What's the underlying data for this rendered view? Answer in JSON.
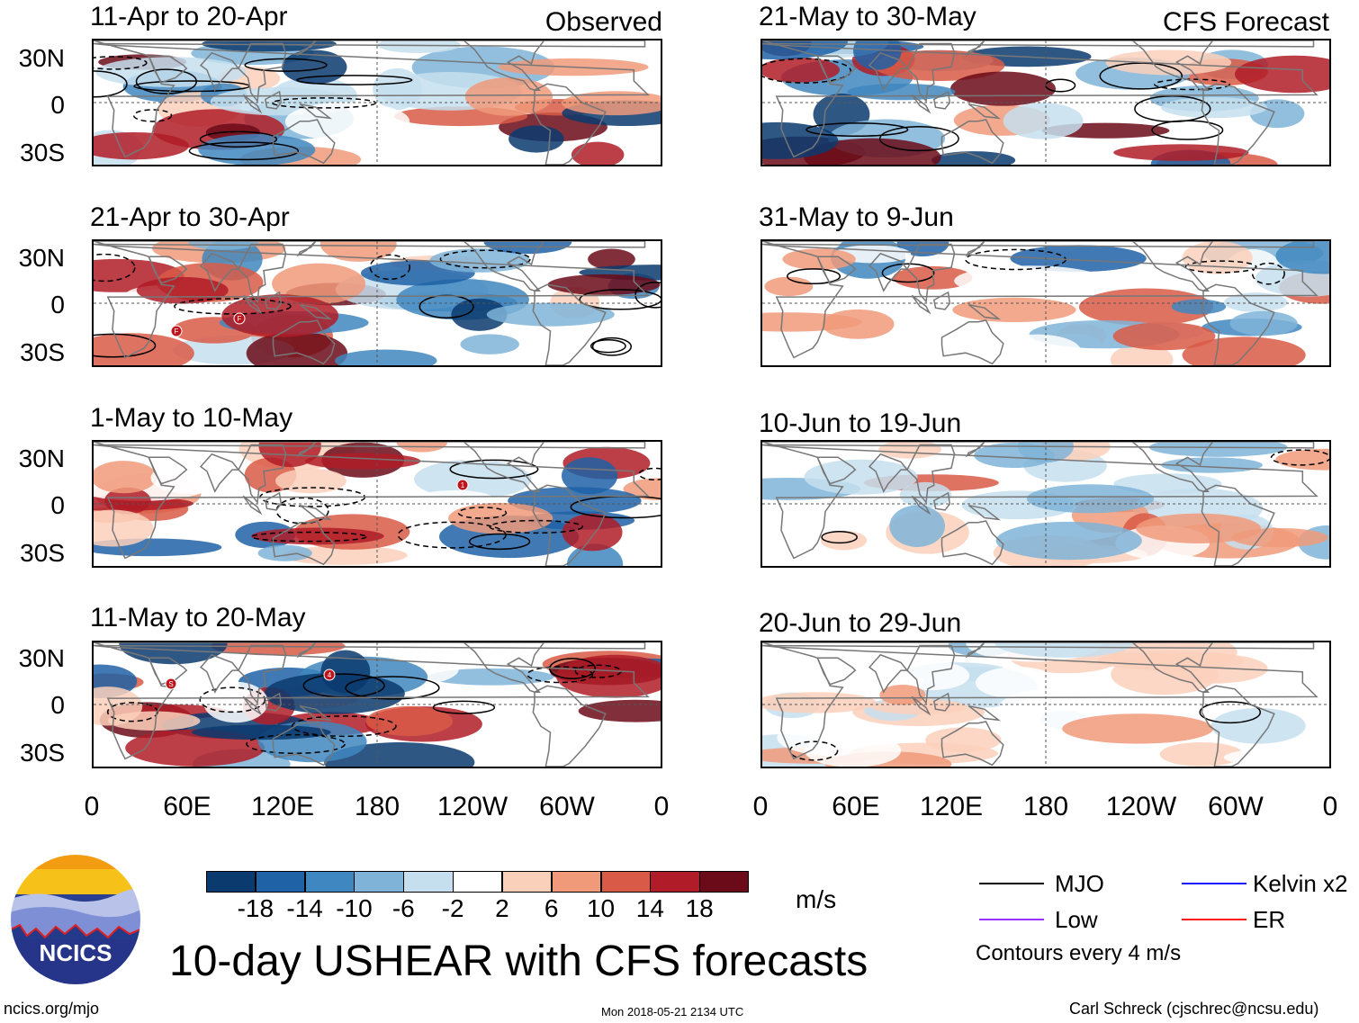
{
  "title": "10-day USHEAR with CFS forecasts",
  "headers": {
    "observed": "Observed",
    "forecast": "CFS Forecast"
  },
  "observed_panels": [
    "11-Apr to 20-Apr",
    "21-Apr to 30-Apr",
    "1-May to 10-May",
    "11-May to 20-May"
  ],
  "forecast_panels": [
    "21-May to 30-May",
    "31-May to 9-Jun",
    "10-Jun to 19-Jun",
    "20-Jun to 29-Jun"
  ],
  "lat_labels": [
    "30N",
    "0",
    "30S"
  ],
  "lon_labels": [
    "0",
    "60E",
    "120E",
    "180",
    "120W",
    "60W",
    "0"
  ],
  "colorbar": {
    "ticks": [
      "-18",
      "-14",
      "-10",
      "-6",
      "-2",
      "2",
      "6",
      "10",
      "14",
      "18"
    ],
    "units": "m/s",
    "colors": [
      "#0a3a6e",
      "#1f62a6",
      "#3f87c0",
      "#7fb4d8",
      "#c5dfee",
      "#ffffff",
      "#fbd0bb",
      "#f09a7a",
      "#d95a47",
      "#b01c27",
      "#6b0a18"
    ]
  },
  "legend": {
    "items": [
      {
        "label": "MJO",
        "color": "#000000"
      },
      {
        "label": "Kelvin x2",
        "color": "#1a1aff"
      },
      {
        "label": "Low",
        "color": "#9b30ff"
      },
      {
        "label": "ER",
        "color": "#ff1a1a"
      }
    ],
    "contour_note": "Contours every 4 m/s"
  },
  "storm_markers": [
    {
      "panel": "21-Apr to 30-Apr",
      "label": "F"
    },
    {
      "panel": "21-Apr to 30-Apr",
      "label": "F"
    },
    {
      "panel": "1-May to 10-May",
      "label": "1"
    },
    {
      "panel": "11-May to 20-May",
      "label": "S"
    },
    {
      "panel": "11-May to 20-May",
      "label": "4"
    }
  ],
  "logo_text": "NCICS",
  "footer": {
    "left": "ncics.org/mjo",
    "center": "Mon 2018-05-21 2134 UTC",
    "right": "Carl Schreck (cjschrec@ncsu.edu)"
  }
}
